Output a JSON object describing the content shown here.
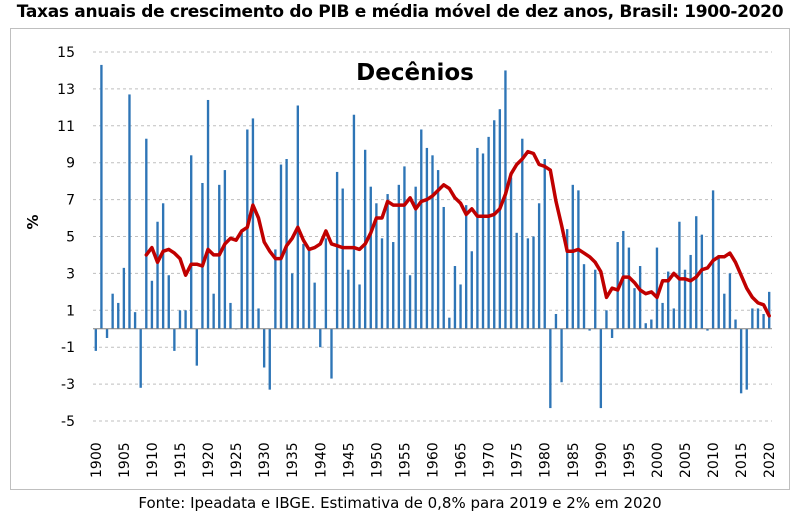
{
  "chart_data": {
    "type": "bar",
    "title": "Taxas anuais de crescimento do PIB e média móvel de dez anos, Brasil: 1900-2020",
    "ylabel": "%",
    "xlabel": "",
    "annotation": "Decênios",
    "source": "Fonte: Ipeadata e IBGE. Estimativa de 0,8% para 2019 e 2% em 2020",
    "ylim": [
      -5,
      15
    ],
    "yticks": [
      15,
      13,
      11,
      9,
      7,
      5,
      3,
      1,
      -1,
      -3,
      -5
    ],
    "xticks": [
      1900,
      1905,
      1910,
      1915,
      1920,
      1925,
      1930,
      1935,
      1940,
      1945,
      1950,
      1955,
      1960,
      1965,
      1970,
      1975,
      1980,
      1985,
      1990,
      1995,
      2000,
      2005,
      2010,
      2015,
      2020
    ],
    "grid": true,
    "x": [
      1900,
      1901,
      1902,
      1903,
      1904,
      1905,
      1906,
      1907,
      1908,
      1909,
      1910,
      1911,
      1912,
      1913,
      1914,
      1915,
      1916,
      1917,
      1918,
      1919,
      1920,
      1921,
      1922,
      1923,
      1924,
      1925,
      1926,
      1927,
      1928,
      1929,
      1930,
      1931,
      1932,
      1933,
      1934,
      1935,
      1936,
      1937,
      1938,
      1939,
      1940,
      1941,
      1942,
      1943,
      1944,
      1945,
      1946,
      1947,
      1948,
      1949,
      1950,
      1951,
      1952,
      1953,
      1954,
      1955,
      1956,
      1957,
      1958,
      1959,
      1960,
      1961,
      1962,
      1963,
      1964,
      1965,
      1966,
      1967,
      1968,
      1969,
      1970,
      1971,
      1972,
      1973,
      1974,
      1975,
      1976,
      1977,
      1978,
      1979,
      1980,
      1981,
      1982,
      1983,
      1984,
      1985,
      1986,
      1987,
      1988,
      1989,
      1990,
      1991,
      1992,
      1993,
      1994,
      1995,
      1996,
      1997,
      1998,
      1999,
      2000,
      2001,
      2002,
      2003,
      2004,
      2005,
      2006,
      2007,
      2008,
      2009,
      2010,
      2011,
      2012,
      2013,
      2014,
      2015,
      2016,
      2017,
      2018,
      2019,
      2020
    ],
    "series": [
      {
        "type": "bar",
        "color": "#2e75b6",
        "values": [
          -1.2,
          14.3,
          -0.5,
          1.9,
          1.4,
          3.3,
          12.7,
          0.9,
          -3.2,
          10.3,
          2.6,
          5.8,
          6.8,
          2.9,
          -1.2,
          1.0,
          1.0,
          9.4,
          -2.0,
          7.9,
          12.4,
          1.9,
          7.8,
          8.6,
          1.4,
          0.0,
          5.2,
          10.8,
          11.4,
          1.1,
          -2.1,
          -3.3,
          4.3,
          8.9,
          9.2,
          3.0,
          12.1,
          4.6,
          4.4,
          2.5,
          -1.0,
          4.9,
          -2.7,
          8.5,
          7.6,
          3.2,
          11.6,
          2.4,
          9.7,
          7.7,
          6.8,
          4.9,
          7.3,
          4.7,
          7.8,
          8.8,
          2.9,
          7.7,
          10.8,
          9.8,
          9.4,
          8.6,
          6.6,
          0.6,
          3.4,
          2.4,
          6.7,
          4.2,
          9.8,
          9.5,
          10.4,
          11.3,
          11.9,
          14.0,
          8.2,
          5.2,
          10.3,
          4.9,
          5.0,
          6.8,
          9.2,
          -4.3,
          0.8,
          -2.9,
          5.4,
          7.8,
          7.5,
          3.5,
          -0.1,
          3.2,
          -4.3,
          1.0,
          -0.5,
          4.7,
          5.3,
          4.4,
          2.2,
          3.4,
          0.3,
          0.5,
          4.4,
          1.4,
          3.1,
          1.1,
          5.8,
          3.2,
          4.0,
          6.1,
          5.1,
          -0.1,
          7.5,
          4.0,
          1.9,
          3.0,
          0.5,
          -3.5,
          -3.3,
          1.1,
          1.1,
          0.8,
          2.0
        ]
      },
      {
        "type": "line",
        "name": "média móvel de dez anos",
        "color": "#c00000",
        "x": [
          1909,
          1910,
          1911,
          1912,
          1913,
          1914,
          1915,
          1916,
          1917,
          1918,
          1919,
          1920,
          1921,
          1922,
          1923,
          1924,
          1925,
          1926,
          1927,
          1928,
          1929,
          1930,
          1931,
          1932,
          1933,
          1934,
          1935,
          1936,
          1937,
          1938,
          1939,
          1940,
          1941,
          1942,
          1943,
          1944,
          1945,
          1946,
          1947,
          1948,
          1949,
          1950,
          1951,
          1952,
          1953,
          1954,
          1955,
          1956,
          1957,
          1958,
          1959,
          1960,
          1961,
          1962,
          1963,
          1964,
          1965,
          1966,
          1967,
          1968,
          1969,
          1970,
          1971,
          1972,
          1973,
          1974,
          1975,
          1976,
          1977,
          1978,
          1979,
          1980,
          1981,
          1982,
          1983,
          1984,
          1985,
          1986,
          1987,
          1988,
          1989,
          1990,
          1991,
          1992,
          1993,
          1994,
          1995,
          1996,
          1997,
          1998,
          1999,
          2000,
          2001,
          2002,
          2003,
          2004,
          2005,
          2006,
          2007,
          2008,
          2009,
          2010,
          2011,
          2012,
          2013,
          2014,
          2015,
          2016,
          2017,
          2018,
          2019,
          2020
        ],
        "values": [
          4.0,
          4.4,
          3.6,
          4.2,
          4.3,
          4.1,
          3.8,
          2.9,
          3.5,
          3.5,
          3.4,
          4.3,
          4.0,
          4.0,
          4.6,
          4.9,
          4.8,
          5.3,
          5.5,
          6.7,
          6.0,
          4.7,
          4.2,
          3.8,
          3.8,
          4.5,
          4.9,
          5.5,
          4.8,
          4.3,
          4.4,
          4.6,
          5.3,
          4.6,
          4.5,
          4.4,
          4.4,
          4.4,
          4.3,
          4.6,
          5.2,
          6.0,
          6.0,
          6.9,
          6.7,
          6.7,
          6.7,
          7.1,
          6.5,
          6.9,
          7.0,
          7.2,
          7.5,
          7.8,
          7.6,
          7.1,
          6.8,
          6.2,
          6.5,
          6.1,
          6.1,
          6.1,
          6.2,
          6.5,
          7.3,
          8.4,
          8.9,
          9.2,
          9.6,
          9.5,
          8.9,
          8.8,
          8.6,
          6.9,
          5.6,
          4.2,
          4.2,
          4.3,
          4.1,
          3.9,
          3.6,
          3.1,
          1.7,
          2.2,
          2.1,
          2.8,
          2.8,
          2.5,
          2.1,
          1.9,
          2.0,
          1.7,
          2.6,
          2.6,
          3.0,
          2.7,
          2.7,
          2.6,
          2.8,
          3.2,
          3.3,
          3.7,
          3.9,
          3.9,
          4.1,
          3.6,
          2.9,
          2.2,
          1.7,
          1.4,
          1.3,
          0.7
        ]
      }
    ]
  }
}
